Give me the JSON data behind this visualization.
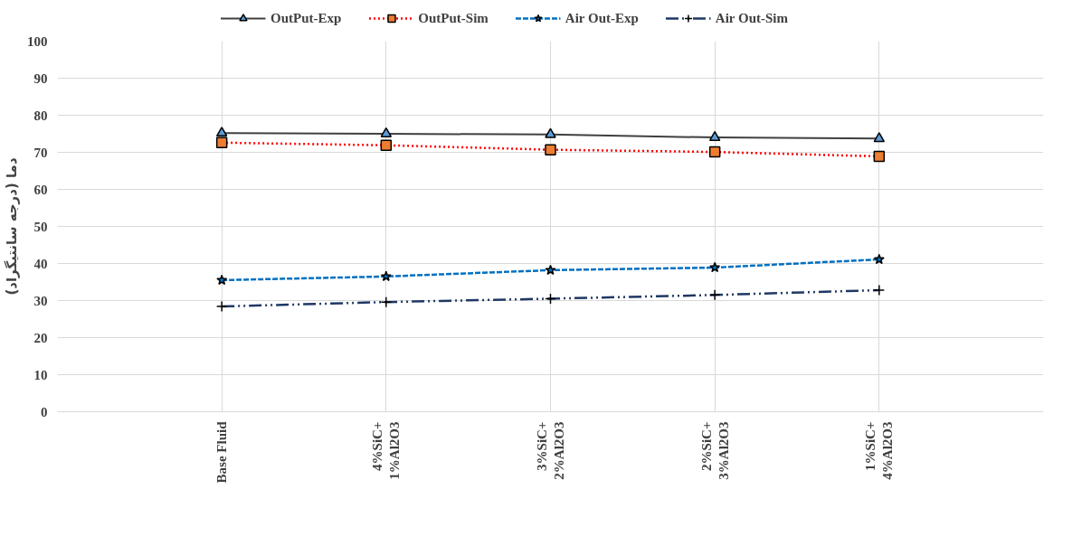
{
  "chart_data": {
    "type": "line",
    "ylabel": "دما (درجه سانتیگراد)",
    "categories": [
      "Base Fluid",
      "4%SiC+\n1%Al2O3",
      "3%SiC+\n2%Al2O3",
      "2%SiC+\n3%Al2O3",
      "1%SiC+\n4%Al2O3"
    ],
    "series": [
      {
        "name": "OutPut-Exp",
        "color": "#404040",
        "marker": "triangle",
        "colors": [
          "#5b9bd5",
          "#5b9bd5",
          "#5b9bd5",
          "#5b9bd5",
          "#5b9bd5"
        ],
        "line_style": "solid",
        "values": [
          75.2,
          75.0,
          74.8,
          74.0,
          73.7
        ]
      },
      {
        "name": "OutPut-Sim",
        "color": "#ff0000",
        "marker": "square",
        "colors": [
          "#ed7d31",
          "#ed7d31",
          "#ed7d31",
          "#ed7d31",
          "#ed7d31"
        ],
        "line_style": "dotted",
        "values": [
          72.6,
          71.9,
          70.7,
          70.1,
          68.9
        ]
      },
      {
        "name": "Air Out-Exp",
        "color": "#0070c0",
        "marker": "star",
        "line_style": "dashed",
        "values": [
          35.5,
          36.5,
          38.2,
          38.9,
          41.1
        ]
      },
      {
        "name": "Air Out-Sim",
        "color": "#1f3864",
        "marker": "cross",
        "line_style": "dashdot",
        "values": [
          28.4,
          29.6,
          30.5,
          31.5,
          32.8
        ]
      }
    ],
    "ylim": [
      0,
      100
    ],
    "yticks": [
      0,
      10,
      20,
      30,
      40,
      50,
      60,
      70,
      80,
      90,
      100
    ],
    "grid": true,
    "legend": "top"
  }
}
